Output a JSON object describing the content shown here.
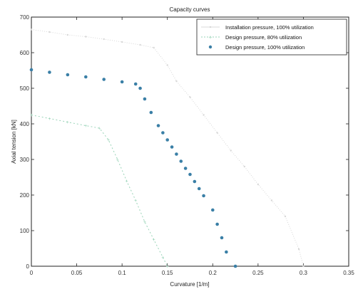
{
  "chart_data": {
    "type": "scatter",
    "title": "Capacity curves",
    "xlabel": "Curvature [1/m]",
    "ylabel": "Axial tension [kN]",
    "xlim": [
      0,
      0.35
    ],
    "ylim": [
      0,
      700
    ],
    "x_ticks": [
      "0",
      "0.05",
      "0.1",
      "0.15",
      "0.2",
      "0.25",
      "0.3",
      "0.35"
    ],
    "y_ticks": [
      "0",
      "100",
      "200",
      "300",
      "400",
      "500",
      "600",
      "700"
    ],
    "grid": false,
    "legend_position": "top-right",
    "series": [
      {
        "name": "Installation pressure, 100% utilization",
        "color": "#d8d8d8",
        "marker": "dot-small",
        "x": [
          0.0,
          0.02,
          0.04,
          0.06,
          0.08,
          0.1,
          0.12,
          0.135,
          0.15,
          0.16,
          0.175,
          0.19,
          0.205,
          0.22,
          0.235,
          0.25,
          0.265,
          0.28,
          0.295,
          0.3
        ],
        "y": [
          665,
          658,
          650,
          645,
          638,
          630,
          622,
          614,
          565,
          520,
          475,
          425,
          375,
          325,
          280,
          230,
          185,
          140,
          48,
          0
        ]
      },
      {
        "name": "Design pressure, 80% utilization",
        "color": "#9ad4b8",
        "marker": "plus",
        "x": [
          0.0,
          0.02,
          0.04,
          0.06,
          0.075,
          0.085,
          0.095,
          0.105,
          0.115,
          0.125,
          0.135,
          0.145,
          0.15
        ],
        "y": [
          425,
          415,
          405,
          395,
          388,
          355,
          300,
          240,
          185,
          125,
          75,
          25,
          0
        ]
      },
      {
        "name": "Design pressure, 100% utilization",
        "color": "#3a7fa6",
        "marker": "dot-large",
        "x": [
          0.0,
          0.02,
          0.04,
          0.06,
          0.08,
          0.1,
          0.115,
          0.12,
          0.125,
          0.132,
          0.14,
          0.145,
          0.15,
          0.155,
          0.16,
          0.165,
          0.17,
          0.175,
          0.18,
          0.185,
          0.19,
          0.2,
          0.205,
          0.21,
          0.215,
          0.225
        ],
        "y": [
          552,
          545,
          538,
          532,
          525,
          518,
          512,
          500,
          470,
          432,
          395,
          375,
          355,
          335,
          315,
          295,
          275,
          258,
          238,
          218,
          198,
          158,
          118,
          80,
          40,
          0
        ]
      }
    ]
  }
}
